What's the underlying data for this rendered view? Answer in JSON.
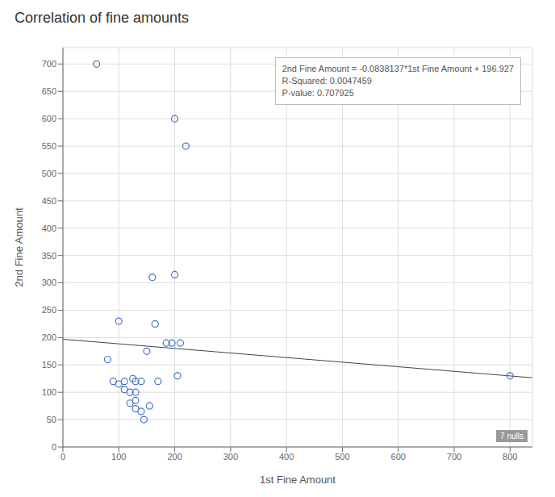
{
  "chart_data": {
    "type": "scatter",
    "title": "Correlation of fine amounts",
    "x_label": "1st Fine Amount",
    "y_label": "2nd Fine Amount",
    "xlim": [
      0,
      840
    ],
    "ylim": [
      0,
      730
    ],
    "xticks": [
      0,
      100,
      200,
      300,
      400,
      500,
      600,
      700,
      800
    ],
    "yticks": [
      0,
      50,
      100,
      150,
      200,
      250,
      300,
      350,
      400,
      450,
      500,
      550,
      600,
      650,
      700
    ],
    "x": [
      60,
      80,
      90,
      100,
      100,
      110,
      110,
      120,
      120,
      125,
      130,
      130,
      130,
      130,
      140,
      140,
      145,
      150,
      155,
      160,
      165,
      170,
      185,
      195,
      200,
      200,
      205,
      210,
      220,
      800
    ],
    "values": [
      700,
      160,
      120,
      115,
      230,
      105,
      120,
      80,
      100,
      125,
      70,
      85,
      100,
      120,
      65,
      120,
      50,
      175,
      75,
      310,
      225,
      120,
      190,
      190,
      600,
      315,
      130,
      190,
      550,
      130
    ],
    "color": "#4472C4",
    "marker": "circle",
    "grid": true,
    "trend_line": {
      "x": [
        0,
        840
      ],
      "values": [
        196.927,
        126.523492
      ],
      "color": "#444444"
    },
    "annotations": [
      "2nd Fine Amount = -0.0838137*1st Fine Amount + 196.927\nR-Squared: 0.0047459\nP-value: 0.707925",
      "7 nulls"
    ]
  }
}
